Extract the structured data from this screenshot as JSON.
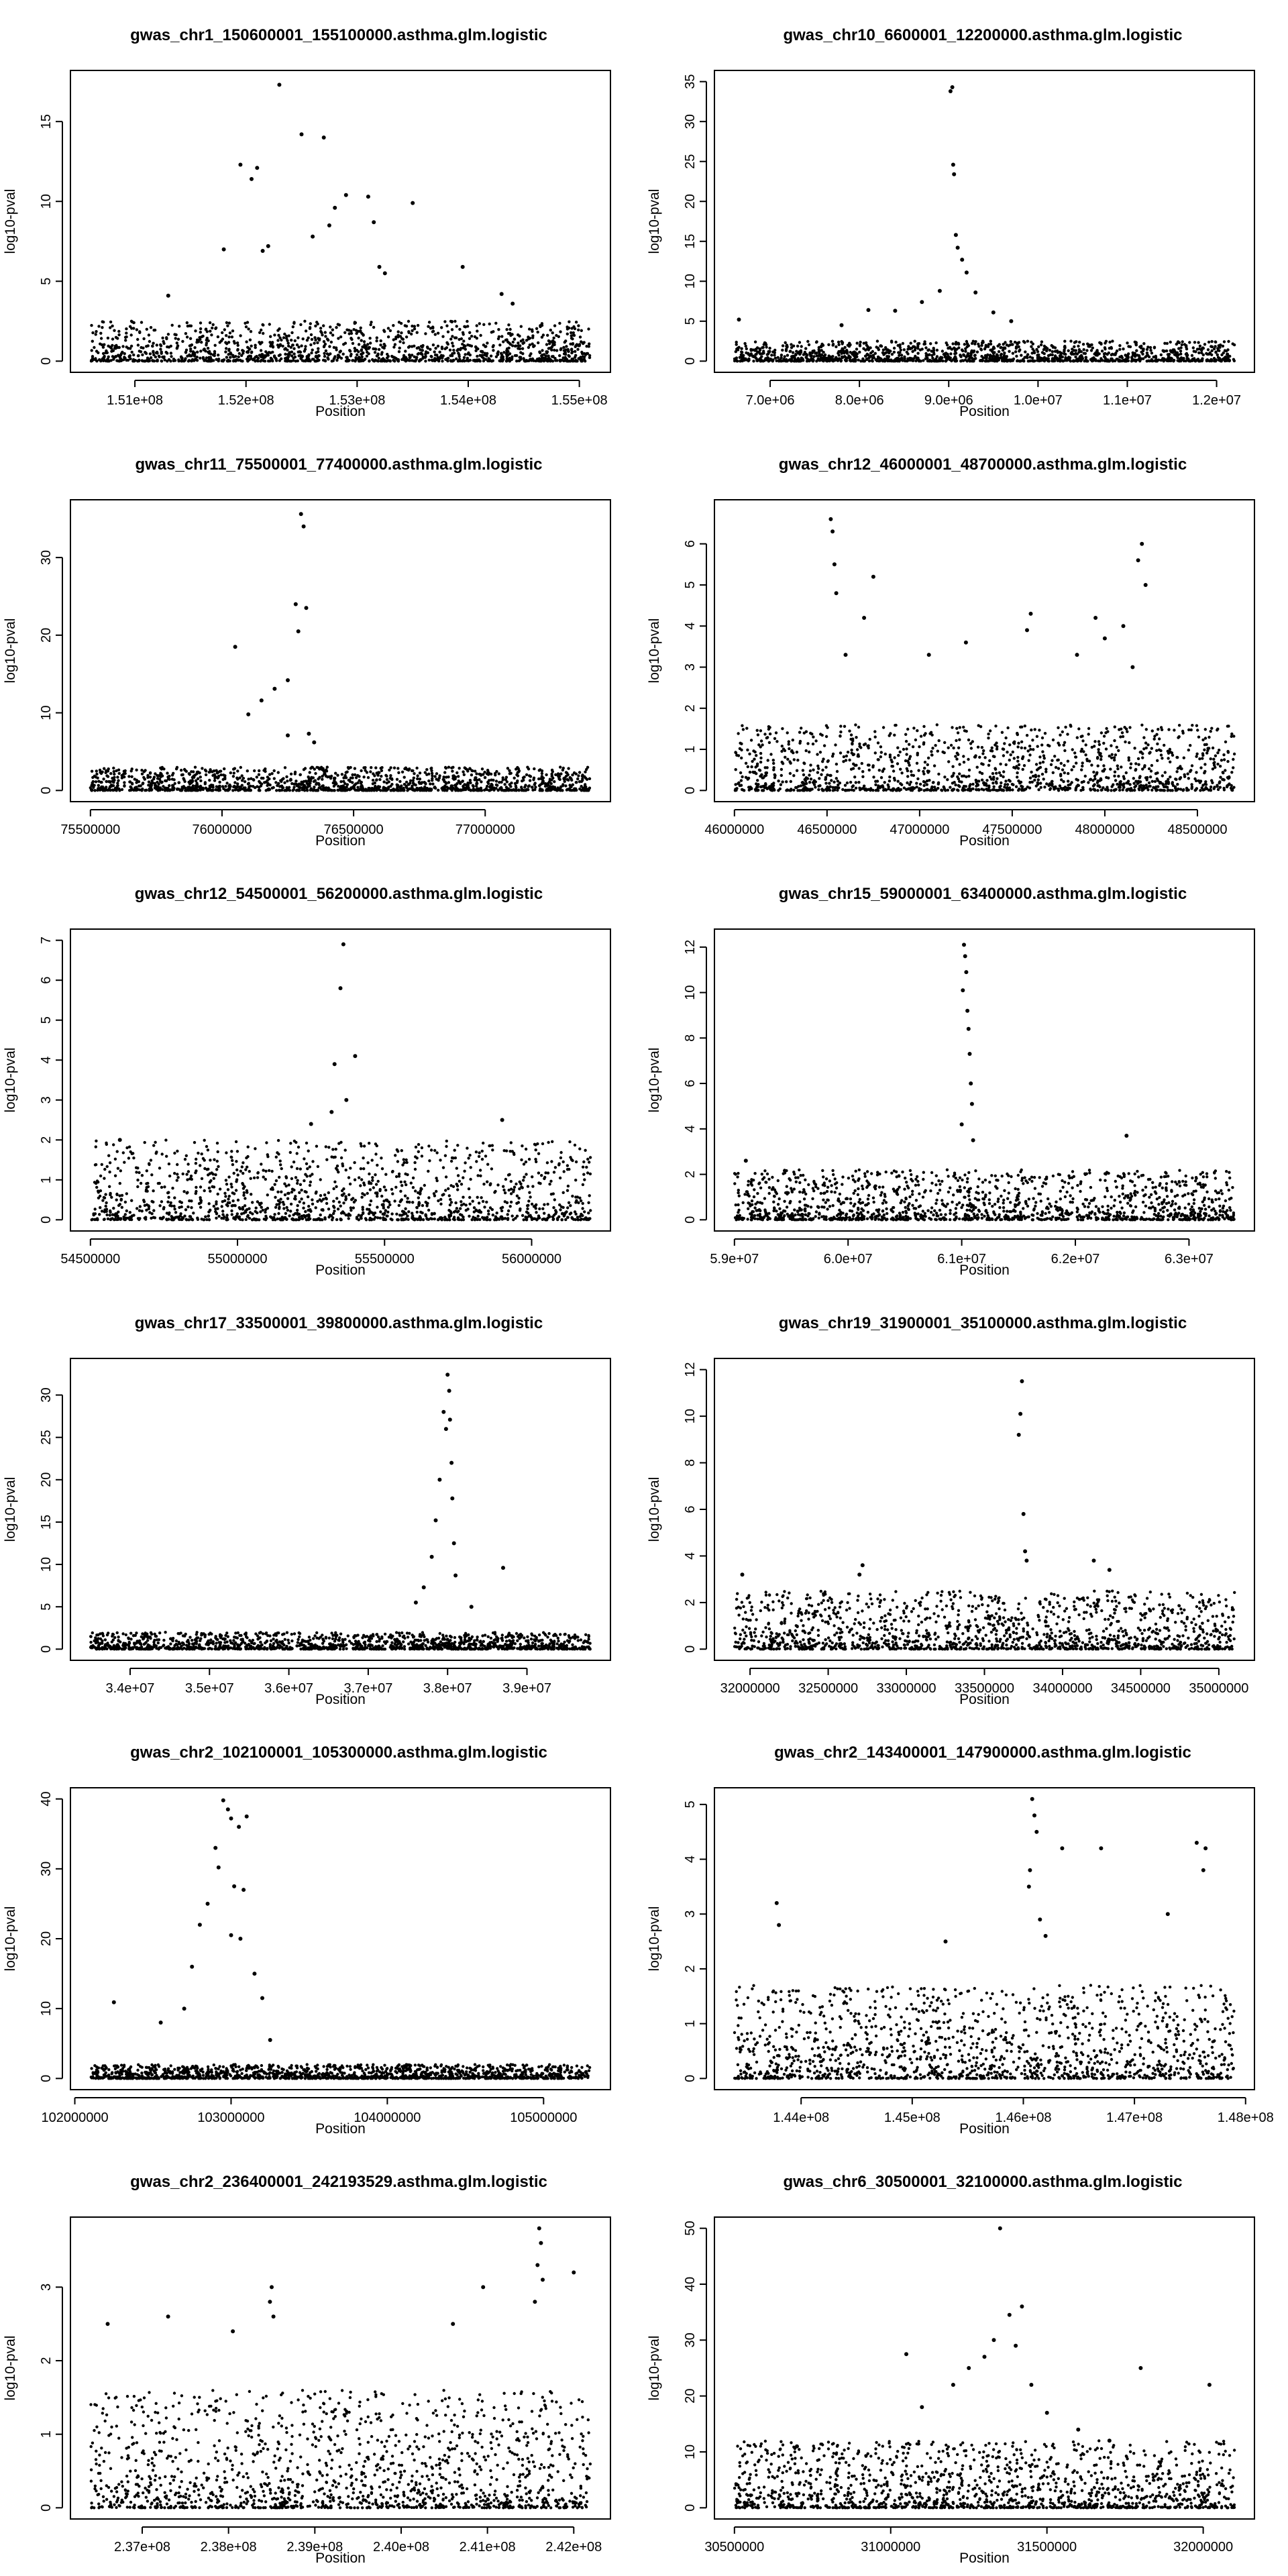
{
  "chart_data": [
    {
      "type": "scatter",
      "title": "gwas_chr1_150600001_155100000.asthma.glm.logistic",
      "xlabel": "Position",
      "ylabel": "log10-pval",
      "xlim": [
        150600001,
        155100000
      ],
      "ylim": [
        0,
        17.5
      ],
      "xticks": [
        151000000,
        152000000,
        153000000,
        154000000,
        155000000
      ],
      "xtick_labels": [
        "1.51e+08",
        "1.52e+08",
        "1.53e+08",
        "1.54e+08",
        "1.55e+08"
      ],
      "yticks": [
        0,
        5,
        10,
        15
      ],
      "ytick_labels": [
        "0",
        "5",
        "10",
        "15"
      ],
      "points": [
        [
          151300000,
          4.1
        ],
        [
          151800000,
          7.0
        ],
        [
          151950000,
          12.3
        ],
        [
          152050000,
          11.4
        ],
        [
          152100000,
          12.1
        ],
        [
          152150000,
          6.9
        ],
        [
          152200000,
          7.2
        ],
        [
          152300000,
          17.3
        ],
        [
          152500000,
          14.2
        ],
        [
          152600000,
          7.8
        ],
        [
          152700000,
          14.0
        ],
        [
          152750000,
          8.5
        ],
        [
          152800000,
          9.6
        ],
        [
          152900000,
          10.4
        ],
        [
          153100000,
          10.3
        ],
        [
          153150000,
          8.7
        ],
        [
          153200000,
          5.9
        ],
        [
          153250000,
          5.5
        ],
        [
          153500000,
          9.9
        ],
        [
          153950000,
          5.9
        ],
        [
          154300000,
          4.2
        ],
        [
          154400000,
          3.6
        ]
      ],
      "baseline_max": 2.5
    },
    {
      "type": "scatter",
      "title": "gwas_chr10_6600001_12200000.asthma.glm.logistic",
      "xlabel": "Position",
      "ylabel": "log10-pval",
      "xlim": [
        6600001,
        12200000
      ],
      "ylim": [
        0,
        35
      ],
      "xticks": [
        7000000,
        8000000,
        9000000,
        10000000,
        11000000,
        12000000
      ],
      "xtick_labels": [
        "7.0e+06",
        "8.0e+06",
        "9.0e+06",
        "1.0e+07",
        "1.1e+07",
        "1.2e+07"
      ],
      "yticks": [
        0,
        5,
        10,
        15,
        20,
        25,
        30,
        35
      ],
      "ytick_labels": [
        "0",
        "5",
        "10",
        "15",
        "20",
        "25",
        "30",
        "35"
      ],
      "points": [
        [
          6650000,
          5.2
        ],
        [
          7800000,
          4.5
        ],
        [
          8100000,
          6.4
        ],
        [
          8400000,
          6.3
        ],
        [
          8700000,
          7.4
        ],
        [
          8900000,
          8.8
        ],
        [
          9020000,
          33.8
        ],
        [
          9040000,
          34.3
        ],
        [
          9050000,
          24.6
        ],
        [
          9060000,
          23.4
        ],
        [
          9080000,
          15.8
        ],
        [
          9100000,
          14.2
        ],
        [
          9150000,
          12.7
        ],
        [
          9200000,
          11.1
        ],
        [
          9300000,
          8.6
        ],
        [
          9500000,
          6.1
        ],
        [
          9700000,
          5.0
        ]
      ],
      "baseline_max": 2.5
    },
    {
      "type": "scatter",
      "title": "gwas_chr11_75500001_77400000.asthma.glm.logistic",
      "xlabel": "Position",
      "ylabel": "log10-pval",
      "xlim": [
        75500001,
        77400000
      ],
      "ylim": [
        0,
        36
      ],
      "xticks": [
        75500000,
        76000000,
        76500000,
        77000000
      ],
      "xtick_labels": [
        "75500000",
        "76000000",
        "76500000",
        "77000000"
      ],
      "yticks": [
        0,
        10,
        20,
        30
      ],
      "ytick_labels": [
        "0",
        "10",
        "20",
        "30"
      ],
      "points": [
        [
          76050000,
          18.5
        ],
        [
          76100000,
          9.8
        ],
        [
          76150000,
          11.6
        ],
        [
          76200000,
          13.1
        ],
        [
          76250000,
          14.2
        ],
        [
          76280000,
          24.0
        ],
        [
          76290000,
          20.5
        ],
        [
          76300000,
          35.6
        ],
        [
          76310000,
          34.0
        ],
        [
          76320000,
          23.5
        ],
        [
          76330000,
          7.3
        ],
        [
          76350000,
          6.2
        ],
        [
          76250000,
          7.1
        ]
      ],
      "baseline_max": 3.0
    },
    {
      "type": "scatter",
      "title": "gwas_chr12_46000001_48700000.asthma.glm.logistic",
      "xlabel": "Position",
      "ylabel": "log10-pval",
      "xlim": [
        46000001,
        48700000
      ],
      "ylim": [
        0,
        6.8
      ],
      "xticks": [
        46000000,
        46500000,
        47000000,
        47500000,
        48000000,
        48500000
      ],
      "xtick_labels": [
        "46000000",
        "46500000",
        "47000000",
        "47500000",
        "48000000",
        "48500000"
      ],
      "yticks": [
        0,
        1,
        2,
        3,
        4,
        5,
        6
      ],
      "ytick_labels": [
        "0",
        "1",
        "2",
        "3",
        "4",
        "5",
        "6"
      ],
      "points": [
        [
          46520000,
          6.6
        ],
        [
          46530000,
          6.3
        ],
        [
          46540000,
          5.5
        ],
        [
          46550000,
          4.8
        ],
        [
          46750000,
          5.2
        ],
        [
          46700000,
          4.2
        ],
        [
          46600000,
          3.3
        ],
        [
          47050000,
          3.3
        ],
        [
          47250000,
          3.6
        ],
        [
          47600000,
          4.3
        ],
        [
          47580000,
          3.9
        ],
        [
          47850000,
          3.3
        ],
        [
          47950000,
          4.2
        ],
        [
          48000000,
          3.7
        ],
        [
          48100000,
          4.0
        ],
        [
          48150000,
          3.0
        ],
        [
          48200000,
          6.0
        ],
        [
          48180000,
          5.6
        ],
        [
          48220000,
          5.0
        ]
      ],
      "baseline_max": 1.6
    },
    {
      "type": "scatter",
      "title": "gwas_chr12_54500001_56200000.asthma.glm.logistic",
      "xlabel": "Position",
      "ylabel": "log10-pval",
      "xlim": [
        54500001,
        56200000
      ],
      "ylim": [
        0,
        7
      ],
      "xticks": [
        54500000,
        55000000,
        55500000,
        56000000
      ],
      "xtick_labels": [
        "54500000",
        "55000000",
        "55500000",
        "56000000"
      ],
      "yticks": [
        0,
        1,
        2,
        3,
        4,
        5,
        6,
        7
      ],
      "ytick_labels": [
        "0",
        "1",
        "2",
        "3",
        "4",
        "5",
        "6",
        "7"
      ],
      "points": [
        [
          55360000,
          6.9
        ],
        [
          55350000,
          5.8
        ],
        [
          55330000,
          3.9
        ],
        [
          55400000,
          4.1
        ],
        [
          55370000,
          3.0
        ],
        [
          55250000,
          2.4
        ],
        [
          55320000,
          2.7
        ],
        [
          55900000,
          2.5
        ],
        [
          54600000,
          2.0
        ]
      ],
      "baseline_max": 2.0
    },
    {
      "type": "scatter",
      "title": "gwas_chr15_59000001_63400000.asthma.glm.logistic",
      "xlabel": "Position",
      "ylabel": "log10-pval",
      "xlim": [
        59000001,
        63400000
      ],
      "ylim": [
        0,
        12.3
      ],
      "xticks": [
        59000000,
        60000000,
        61000000,
        62000000,
        63000000
      ],
      "xtick_labels": [
        "5.9e+07",
        "6.0e+07",
        "6.1e+07",
        "6.2e+07",
        "6.3e+07"
      ],
      "yticks": [
        0,
        2,
        4,
        6,
        8,
        10,
        12
      ],
      "ytick_labels": [
        "0",
        "2",
        "4",
        "6",
        "8",
        "10",
        "12"
      ],
      "points": [
        [
          61020000,
          12.1
        ],
        [
          61030000,
          11.6
        ],
        [
          61040000,
          10.9
        ],
        [
          61010000,
          10.1
        ],
        [
          61050000,
          9.2
        ],
        [
          61060000,
          8.4
        ],
        [
          61070000,
          7.3
        ],
        [
          61080000,
          6.0
        ],
        [
          61090000,
          5.1
        ],
        [
          61000000,
          4.2
        ],
        [
          61100000,
          3.5
        ],
        [
          62450000,
          3.7
        ],
        [
          59100000,
          2.6
        ]
      ],
      "baseline_max": 2.2
    },
    {
      "type": "scatter",
      "title": "gwas_chr17_33500001_39800000.asthma.glm.logistic",
      "xlabel": "Position",
      "ylabel": "log10-pval",
      "xlim": [
        33500001,
        39800000
      ],
      "ylim": [
        0,
        33
      ],
      "xticks": [
        34000000,
        35000000,
        36000000,
        37000000,
        38000000,
        39000000
      ],
      "xtick_labels": [
        "3.4e+07",
        "3.5e+07",
        "3.6e+07",
        "3.7e+07",
        "3.8e+07",
        "3.9e+07"
      ],
      "yticks": [
        0,
        5,
        10,
        15,
        20,
        25,
        30
      ],
      "ytick_labels": [
        "0",
        "5",
        "10",
        "15",
        "20",
        "25",
        "30"
      ],
      "points": [
        [
          37950000,
          28.0
        ],
        [
          38000000,
          32.4
        ],
        [
          38020000,
          30.5
        ],
        [
          38030000,
          27.1
        ],
        [
          37980000,
          26.0
        ],
        [
          37900000,
          20.0
        ],
        [
          38050000,
          22.0
        ],
        [
          38060000,
          17.8
        ],
        [
          37850000,
          15.2
        ],
        [
          38080000,
          12.5
        ],
        [
          37800000,
          10.9
        ],
        [
          38100000,
          8.7
        ],
        [
          37700000,
          7.3
        ],
        [
          37600000,
          5.5
        ],
        [
          38700000,
          9.6
        ],
        [
          38300000,
          5.0
        ]
      ],
      "baseline_max": 2.0
    },
    {
      "type": "scatter",
      "title": "gwas_chr19_31900001_35100000.asthma.glm.logistic",
      "xlabel": "Position",
      "ylabel": "log10-pval",
      "xlim": [
        31900001,
        35100000
      ],
      "ylim": [
        0,
        12
      ],
      "xticks": [
        32000000,
        32500000,
        33000000,
        33500000,
        34000000,
        34500000,
        35000000
      ],
      "xtick_labels": [
        "32000000",
        "32500000",
        "33000000",
        "33500000",
        "34000000",
        "34500000",
        "35000000"
      ],
      "yticks": [
        0,
        2,
        4,
        6,
        8,
        10,
        12
      ],
      "ytick_labels": [
        "0",
        "2",
        "4",
        "6",
        "8",
        "10",
        "12"
      ],
      "points": [
        [
          33740000,
          11.5
        ],
        [
          33730000,
          10.1
        ],
        [
          33720000,
          9.2
        ],
        [
          33750000,
          5.8
        ],
        [
          33760000,
          4.2
        ],
        [
          33770000,
          3.8
        ],
        [
          32720000,
          3.6
        ],
        [
          32700000,
          3.2
        ],
        [
          31950000,
          3.2
        ],
        [
          34300000,
          3.4
        ],
        [
          34200000,
          3.8
        ]
      ],
      "baseline_max": 2.5
    },
    {
      "type": "scatter",
      "title": "gwas_chr2_102100001_105300000.asthma.glm.logistic",
      "xlabel": "Position",
      "ylabel": "log10-pval",
      "xlim": [
        102100001,
        105300000
      ],
      "ylim": [
        0,
        40
      ],
      "xticks": [
        102000000,
        103000000,
        104000000,
        105000000
      ],
      "xtick_labels": [
        "102000000",
        "103000000",
        "104000000",
        "105000000"
      ],
      "yticks": [
        0,
        10,
        20,
        30,
        40
      ],
      "ytick_labels": [
        "0",
        "10",
        "20",
        "30",
        "40"
      ],
      "points": [
        [
          102950000,
          39.8
        ],
        [
          102980000,
          38.5
        ],
        [
          103000000,
          37.2
        ],
        [
          103050000,
          36.0
        ],
        [
          103100000,
          37.5
        ],
        [
          102900000,
          33.0
        ],
        [
          102920000,
          30.2
        ],
        [
          103020000,
          27.5
        ],
        [
          103080000,
          27.0
        ],
        [
          102850000,
          25.0
        ],
        [
          102800000,
          22.0
        ],
        [
          103000000,
          20.5
        ],
        [
          103060000,
          20.0
        ],
        [
          102750000,
          16.0
        ],
        [
          103150000,
          15.0
        ],
        [
          103200000,
          11.5
        ],
        [
          102700000,
          10.0
        ],
        [
          102550000,
          8.0
        ],
        [
          102250000,
          10.9
        ],
        [
          103250000,
          5.5
        ]
      ],
      "baseline_max": 2.0
    },
    {
      "type": "scatter",
      "title": "gwas_chr2_143400001_147900000.asthma.glm.logistic",
      "xlabel": "Position",
      "ylabel": "log10-pval",
      "xlim": [
        143400001,
        147900000
      ],
      "ylim": [
        0,
        5.1
      ],
      "xticks": [
        144000000,
        145000000,
        146000000,
        147000000,
        148000000
      ],
      "xtick_labels": [
        "1.44e+08",
        "1.45e+08",
        "1.46e+08",
        "1.47e+08",
        "1.48e+08"
      ],
      "yticks": [
        0,
        1,
        2,
        3,
        4,
        5
      ],
      "ytick_labels": [
        "0",
        "1",
        "2",
        "3",
        "4",
        "5"
      ],
      "points": [
        [
          146080000,
          5.1
        ],
        [
          146100000,
          4.8
        ],
        [
          146120000,
          4.5
        ],
        [
          146060000,
          3.8
        ],
        [
          146050000,
          3.5
        ],
        [
          146150000,
          2.9
        ],
        [
          146200000,
          2.6
        ],
        [
          143780000,
          3.2
        ],
        [
          143800000,
          2.8
        ],
        [
          146350000,
          4.2
        ],
        [
          146700000,
          4.2
        ],
        [
          147560000,
          4.3
        ],
        [
          147640000,
          4.2
        ],
        [
          147620000,
          3.8
        ],
        [
          147300000,
          3.0
        ],
        [
          145300000,
          2.5
        ]
      ],
      "baseline_max": 1.7
    },
    {
      "type": "scatter",
      "title": "gwas_chr2_236400001_242193529.asthma.glm.logistic",
      "xlabel": "Position",
      "ylabel": "log10-pval",
      "xlim": [
        236400001,
        242193529
      ],
      "ylim": [
        0,
        3.8
      ],
      "xticks": [
        237000000,
        238000000,
        239000000,
        240000000,
        241000000,
        242000000
      ],
      "xtick_labels": [
        "2.37e+08",
        "2.38e+08",
        "2.39e+08",
        "2.40e+08",
        "2.41e+08",
        "2.42e+08"
      ],
      "yticks": [
        0,
        1,
        2,
        3
      ],
      "ytick_labels": [
        "0",
        "1",
        "2",
        "3"
      ],
      "points": [
        [
          241600000,
          3.8
        ],
        [
          241620000,
          3.6
        ],
        [
          241580000,
          3.3
        ],
        [
          241640000,
          3.1
        ],
        [
          241550000,
          2.8
        ],
        [
          242000000,
          3.2
        ],
        [
          238500000,
          3.0
        ],
        [
          238480000,
          2.8
        ],
        [
          238520000,
          2.6
        ],
        [
          240950000,
          3.0
        ],
        [
          238050000,
          2.4
        ],
        [
          237300000,
          2.6
        ],
        [
          236600000,
          2.5
        ],
        [
          240600000,
          2.5
        ]
      ],
      "baseline_max": 1.6
    },
    {
      "type": "scatter",
      "title": "gwas_chr6_30500001_32100000.asthma.glm.logistic",
      "xlabel": "Position",
      "ylabel": "log10-pval",
      "xlim": [
        30500001,
        32100000
      ],
      "ylim": [
        0,
        50
      ],
      "xticks": [
        30500000,
        31000000,
        31500000,
        32000000
      ],
      "xtick_labels": [
        "30500000",
        "31000000",
        "31500000",
        "32000000"
      ],
      "yticks": [
        0,
        10,
        20,
        30,
        40,
        50
      ],
      "ytick_labels": [
        "0",
        "10",
        "20",
        "30",
        "40",
        "50"
      ],
      "points": [
        [
          31350000,
          50.0
        ],
        [
          31420000,
          36.0
        ],
        [
          31380000,
          34.5
        ],
        [
          31330000,
          30.0
        ],
        [
          31300000,
          27.0
        ],
        [
          31250000,
          25.0
        ],
        [
          31400000,
          29.0
        ],
        [
          31450000,
          22.0
        ],
        [
          31050000,
          27.5
        ],
        [
          31200000,
          22.0
        ],
        [
          31800000,
          25.0
        ],
        [
          32020000,
          22.0
        ],
        [
          31100000,
          18.0
        ],
        [
          31500000,
          17.0
        ],
        [
          31600000,
          14.0
        ],
        [
          31700000,
          12.0
        ],
        [
          30700000,
          11.0
        ]
      ],
      "baseline_max": 12.0
    }
  ]
}
